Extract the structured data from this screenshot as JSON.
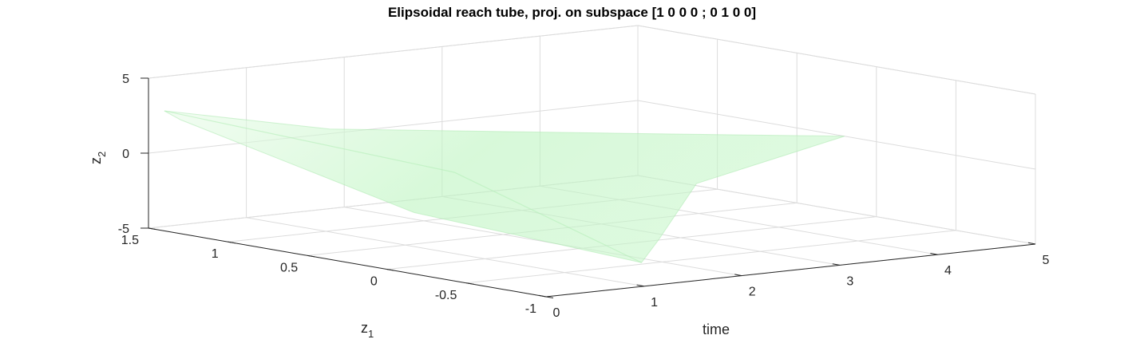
{
  "chart_data": {
    "type": "surface3d",
    "title": "Elipsoidal reach tube, proj. on subspace [1 0 0 0 ; 0 1 0 0]",
    "x_axis": {
      "label": "time",
      "range": [
        0,
        5
      ],
      "ticks": [
        0,
        1,
        2,
        3,
        4,
        5
      ],
      "tick_labels": [
        "0",
        "1",
        "2",
        "3",
        "4",
        "5"
      ]
    },
    "y_axis": {
      "label": "z",
      "label_subscript": "1",
      "range": [
        -1,
        1.5
      ],
      "ticks": [
        1.5,
        1,
        0.5,
        0,
        -0.5,
        -1
      ],
      "tick_labels": [
        "1.5",
        "1",
        "0.5",
        "0",
        "-0.5",
        "-1"
      ]
    },
    "z_axis": {
      "label": "z",
      "label_subscript": "2",
      "range": [
        -5,
        5
      ],
      "ticks": [
        5,
        0,
        -5
      ],
      "tick_labels": [
        "5",
        "0",
        "-5"
      ]
    },
    "grid": true,
    "surface": {
      "description_color": "#bdf5c0",
      "edge_color": "#a8e8ac",
      "opacity": 0.6,
      "outline": [
        [
          0.0,
          1.4,
          3.0
        ],
        [
          1.2,
          1.1,
          1.5
        ],
        [
          3.5,
          0.6,
          0.5
        ],
        [
          5.0,
          0.2,
          0.0
        ],
        [
          3.0,
          -0.1,
          -1.2
        ],
        [
          1.8,
          -0.6,
          -3.2
        ],
        [
          1.3,
          -0.8,
          -4.0
        ],
        [
          0.6,
          0.2,
          -2.0
        ],
        [
          0.0,
          1.3,
          2.6
        ]
      ],
      "ridge": [
        [
          0.0,
          1.4,
          3.0
        ],
        [
          1.5,
          0.5,
          -0.5
        ],
        [
          1.3,
          -0.8,
          -4.0
        ]
      ]
    }
  }
}
